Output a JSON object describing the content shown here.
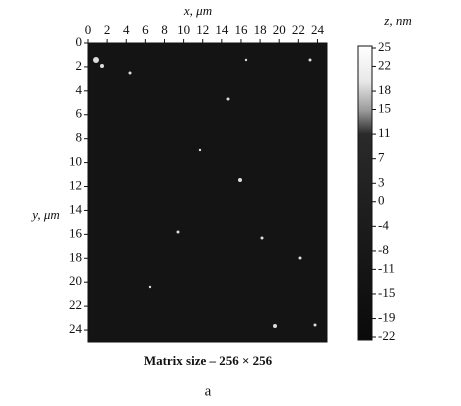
{
  "chart_data": {
    "type": "image",
    "x_label": "x, μm",
    "y_label": "y, μm",
    "colorbar_label": "z, nm",
    "caption": "Matrix size – 256 × 256",
    "panel_label": "a",
    "xlim": [
      0,
      25
    ],
    "xticks": [
      0,
      2,
      4,
      6,
      8,
      10,
      12,
      14,
      16,
      18,
      20,
      22,
      24
    ],
    "ylim": [
      25,
      0
    ],
    "yticks": [
      0,
      2,
      4,
      6,
      8,
      10,
      12,
      14,
      16,
      18,
      20,
      22,
      24
    ],
    "zlim": [
      -22,
      25
    ],
    "zticks": [
      25,
      22,
      18,
      15,
      11,
      7,
      3,
      0,
      -4,
      -8,
      -11,
      -15,
      -19,
      -22
    ]
  }
}
